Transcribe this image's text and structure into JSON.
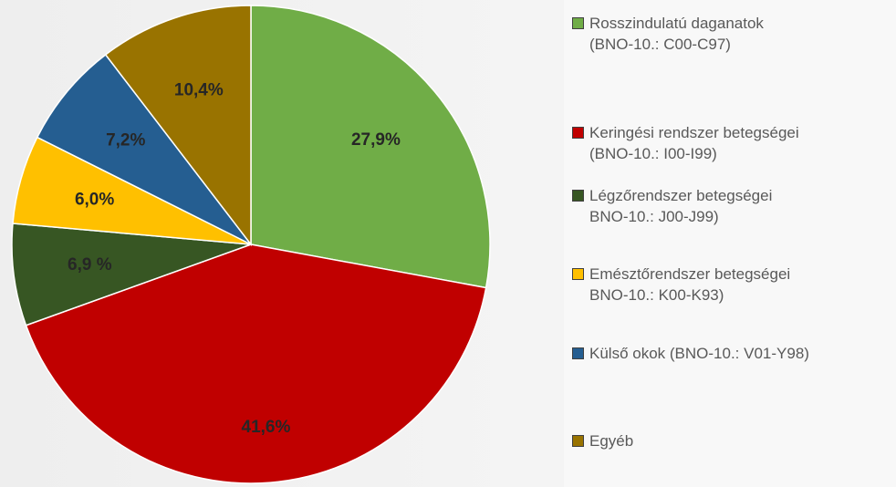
{
  "chart_data": {
    "type": "pie",
    "categories": [
      "Rosszindulatú daganatok\n(BNO-10.: C00-C97)",
      "Keringési rendszer betegségei\n(BNO-10.: I00-I99)",
      "Légzőrendszer betegségei\nBNO-10.: J00-J99)",
      "Emésztőrendszer betegségei\nBNO-10.: K00-K93)",
      "Külső okok (BNO-10.: V01-Y98)",
      "Egyéb"
    ],
    "values": [
      27.9,
      41.6,
      6.9,
      6.0,
      7.2,
      10.4
    ],
    "value_labels": [
      "27,9%",
      "41,6%",
      "6,9 %",
      "6,0%",
      "7,2%",
      "10,4%"
    ],
    "colors": [
      "#70ad47",
      "#c00000",
      "#375623",
      "#ffc000",
      "#255e91",
      "#997300"
    ],
    "legend": "right"
  }
}
